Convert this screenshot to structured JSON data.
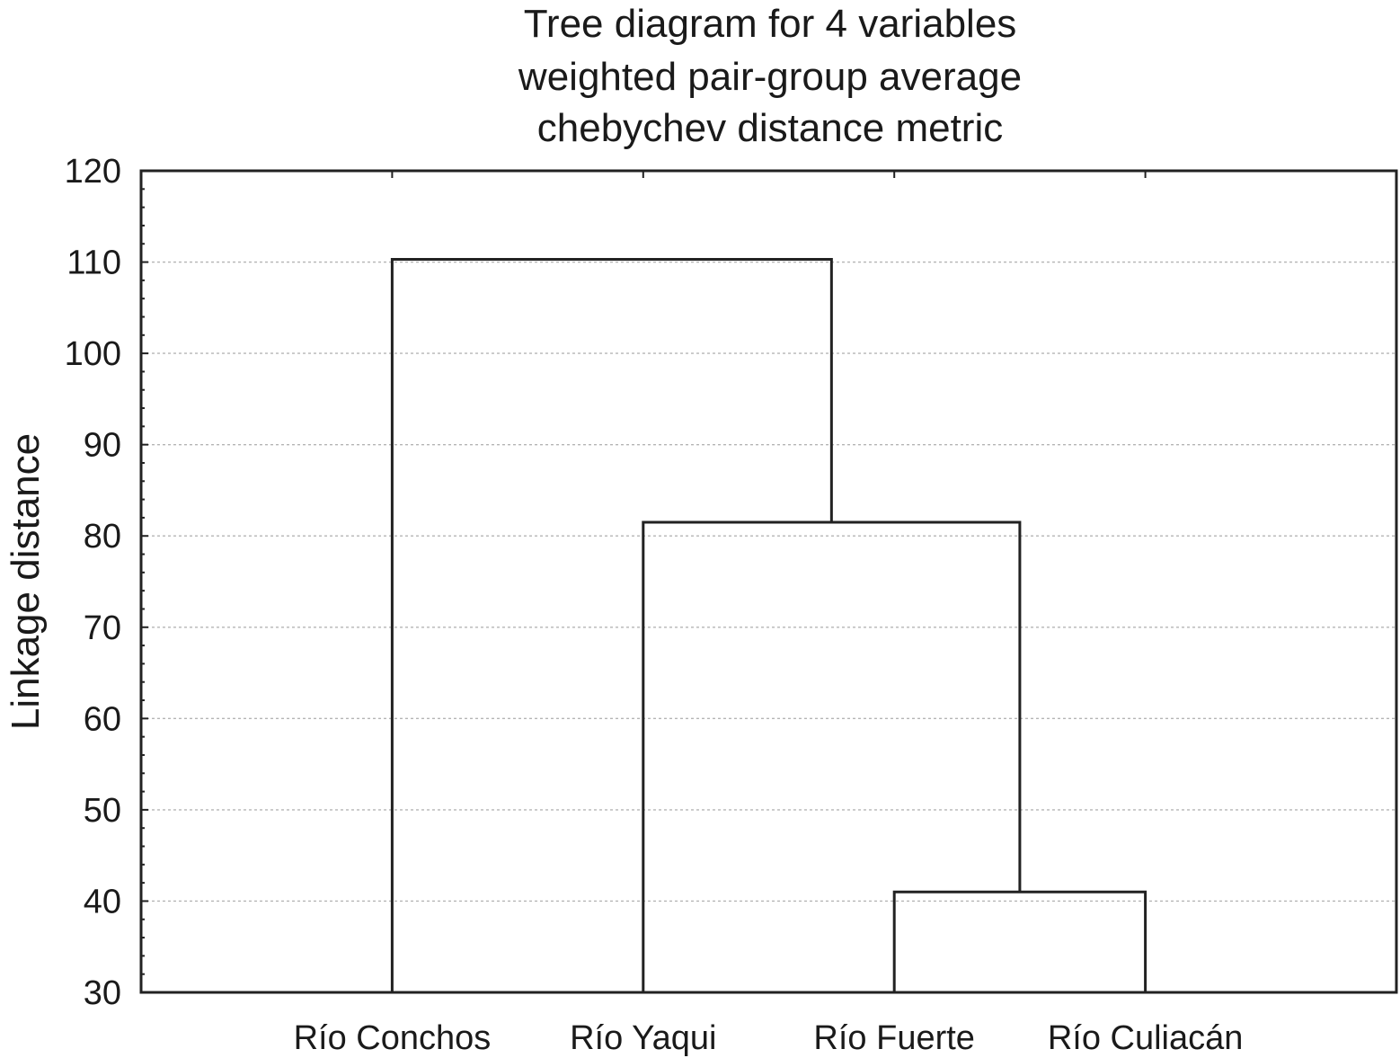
{
  "chart_data": {
    "type": "dendrogram",
    "title_lines": [
      "Tree diagram for 4 variables",
      "weighted pair-group average",
      "chebychev distance metric"
    ],
    "xlabel": "",
    "ylabel": "Linkage distance",
    "ylim": [
      30,
      120
    ],
    "yticks": [
      "30",
      "40",
      "50",
      "60",
      "70",
      "80",
      "90",
      "100",
      "110",
      "120"
    ],
    "grid": true,
    "leaves": [
      "Río Conchos",
      "Río Yaqui",
      "Río Fuerte",
      "Río Culiacán"
    ],
    "merges": [
      {
        "items": [
          "Río Fuerte",
          "Río Culiacán"
        ],
        "distance": 41
      },
      {
        "items": [
          "Río Yaqui",
          "Río Fuerte + Río Culiacán"
        ],
        "distance": 81.5
      },
      {
        "items": [
          "Río Conchos",
          "Río Yaqui + Río Fuerte + Río Culiacán"
        ],
        "distance": 110.3
      }
    ]
  }
}
